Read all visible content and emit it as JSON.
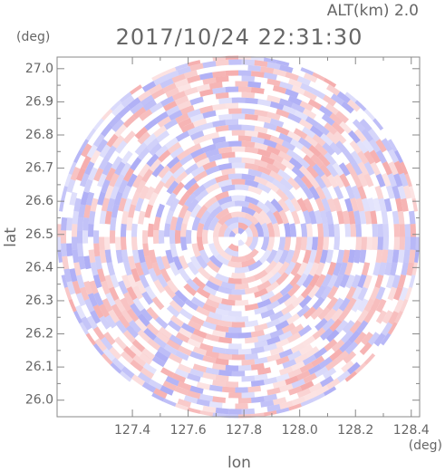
{
  "chart_data": {
    "type": "radar-ppi",
    "title": "2017/10/24 22:31:30",
    "altitude_label": "ALT(km) 2.0",
    "y_unit": "(deg)",
    "x_unit": "(deg)",
    "y_label": "lat",
    "x_label": "lon",
    "xlim": [
      127.13,
      128.43
    ],
    "xticks": [
      127.4,
      127.6,
      127.8,
      {
        "value": 128,
        "label": "128.0"
      },
      128.2,
      128.4
    ],
    "ylim": [
      25.95,
      27.035
    ],
    "yticks": [
      {
        "value": 26,
        "label": "26.0"
      },
      26.1,
      26.2,
      26.3,
      26.4,
      26.5,
      26.6,
      26.7,
      26.8,
      26.9,
      {
        "value": 27,
        "label": "27.0"
      }
    ],
    "colors": [
      "#f08080",
      "#8080f0"
    ]
  }
}
